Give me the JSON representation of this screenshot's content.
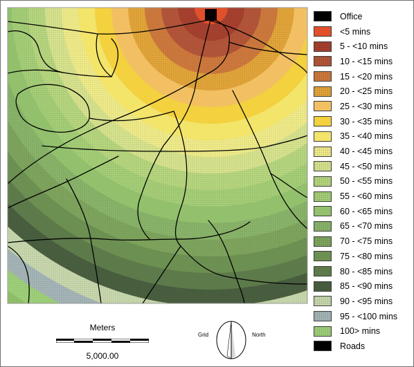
{
  "legend": {
    "items": [
      {
        "label": "Office",
        "color": "#000000",
        "pattern": "solid"
      },
      {
        "label": "<5 mins",
        "color": "#e2502b",
        "pattern": "solid"
      },
      {
        "label": "5 - <10 mins",
        "color": "#a8412f",
        "pattern": "dots"
      },
      {
        "label": "10 - <15 mins",
        "color": "#b5563a",
        "pattern": "dots"
      },
      {
        "label": "15 - <20 mins",
        "color": "#cf7a3e",
        "pattern": "dots"
      },
      {
        "label": "20 - <25 mins",
        "color": "#e3a63a",
        "pattern": "dots"
      },
      {
        "label": "25 - <30 mins",
        "color": "#f2c062",
        "pattern": "solid"
      },
      {
        "label": "30 - <35 mins",
        "color": "#f3d13f",
        "pattern": "solid"
      },
      {
        "label": "35 - <40 mins",
        "color": "#f3e46a",
        "pattern": "solid"
      },
      {
        "label": "40 - <45 mins",
        "color": "#f1ec8a",
        "pattern": "dots"
      },
      {
        "label": "45 - <50 mins",
        "color": "#d8e48e",
        "pattern": "dots"
      },
      {
        "label": "50 - <55 mins",
        "color": "#b7d77f",
        "pattern": "dots"
      },
      {
        "label": "55 - <60 mins",
        "color": "#a6cf78",
        "pattern": "dots"
      },
      {
        "label": "60 - <65 mins",
        "color": "#92c06c",
        "pattern": "solid"
      },
      {
        "label": "65 - <70 mins",
        "color": "#8ab56a",
        "pattern": "dots"
      },
      {
        "label": "70 - <75 mins",
        "color": "#7fa65e",
        "pattern": "dots"
      },
      {
        "label": "75 - <80 mins",
        "color": "#6c8f52",
        "pattern": "solid"
      },
      {
        "label": "80 - <85 mins",
        "color": "#5d7a4a",
        "pattern": "solid"
      },
      {
        "label": "85 - <90 mins",
        "color": "#4a6040",
        "pattern": "dots"
      },
      {
        "label": "90 - <95 mins",
        "color": "#c9d9ae",
        "pattern": "dots"
      },
      {
        "label": "95 - <100 mins",
        "color": "#a6b6b8",
        "pattern": "dots"
      },
      {
        "label": "100> mins",
        "color": "#9fd17a",
        "pattern": "dots"
      },
      {
        "label": "Roads",
        "color": "#000000",
        "pattern": "solid"
      }
    ]
  },
  "map": {
    "road_color": "#000000",
    "office_color": "#000000"
  },
  "scale_bar": {
    "title": "Meters",
    "value": "5,000.00"
  },
  "north_arrow": {
    "left_label": "Grid",
    "right_label": "North"
  }
}
